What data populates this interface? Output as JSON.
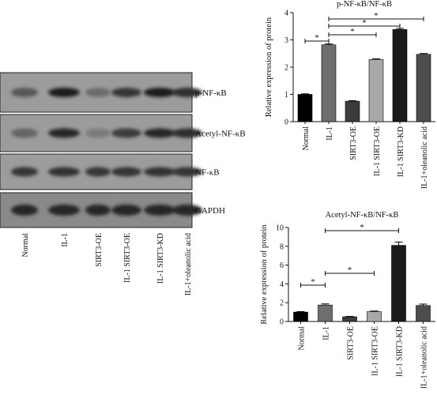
{
  "blot": {
    "lane_labels": [
      "Normal",
      "IL-1",
      "SIRT3-OE",
      "IL-1 SIRT3-OE",
      "IL-1 SIRT3-KD",
      "IL-1+oleanolic acid"
    ],
    "bands": [
      {
        "label": "p-NF-κB",
        "intensity": [
          0.45,
          0.85,
          0.3,
          0.7,
          0.85,
          0.75
        ]
      },
      {
        "label": "Acetyl-NF-κB",
        "intensity": [
          0.35,
          0.8,
          0.2,
          0.65,
          0.8,
          0.75
        ]
      },
      {
        "label": "NF-κB",
        "intensity": [
          0.7,
          0.72,
          0.7,
          0.7,
          0.72,
          0.7
        ]
      },
      {
        "label": "GAPDH",
        "intensity": [
          0.8,
          0.8,
          0.8,
          0.8,
          0.8,
          0.8
        ]
      }
    ]
  },
  "chart_data": [
    {
      "type": "bar",
      "title": "p-NF-κB/NF-κB",
      "ylabel": "Relative expression of protein",
      "categories": [
        "Normal",
        "IL-1",
        "SIRT3-OE",
        "IL-1 SIRT3-OE",
        "IL-1 SIRT3-KD",
        "IL-1+oleanolic acid"
      ],
      "values": [
        1.0,
        2.82,
        0.75,
        2.28,
        3.38,
        2.47
      ],
      "errors": [
        0.02,
        0.03,
        0.02,
        0.03,
        0.04,
        0.03
      ],
      "colors": [
        "#000000",
        "#6e6e6e",
        "#3c3c3c",
        "#a9a9a9",
        "#1a1a1a",
        "#4d4d4d"
      ],
      "ylim": [
        0,
        4
      ],
      "yticks": [
        0,
        1,
        2,
        3,
        4
      ],
      "significance": [
        {
          "from": 0,
          "to": 1,
          "label": "*"
        },
        {
          "from": 1,
          "to": 3,
          "label": "*"
        },
        {
          "from": 1,
          "to": 4,
          "label": "*"
        },
        {
          "from": 1,
          "to": 5,
          "label": "*"
        }
      ]
    },
    {
      "type": "bar",
      "title": "Acetyl-NF-κB/NF-κB",
      "ylabel": "Relative expression of protein",
      "categories": [
        "Normal",
        "IL-1",
        "SIRT3-OE",
        "IL-1 SIRT3-OE",
        "IL-1 SIRT3-KD",
        "IL-1+oleanolic acid"
      ],
      "values": [
        1.0,
        1.75,
        0.5,
        1.05,
        8.1,
        1.7
      ],
      "errors": [
        0.05,
        0.12,
        0.04,
        0.06,
        0.35,
        0.15
      ],
      "colors": [
        "#000000",
        "#6e6e6e",
        "#3c3c3c",
        "#a9a9a9",
        "#1a1a1a",
        "#4d4d4d"
      ],
      "ylim": [
        0,
        10
      ],
      "yticks": [
        0,
        2,
        4,
        6,
        8,
        10
      ],
      "significance": [
        {
          "from": 0,
          "to": 1,
          "label": "*"
        },
        {
          "from": 1,
          "to": 3,
          "label": "*"
        },
        {
          "from": 1,
          "to": 4,
          "label": "*"
        }
      ]
    }
  ]
}
